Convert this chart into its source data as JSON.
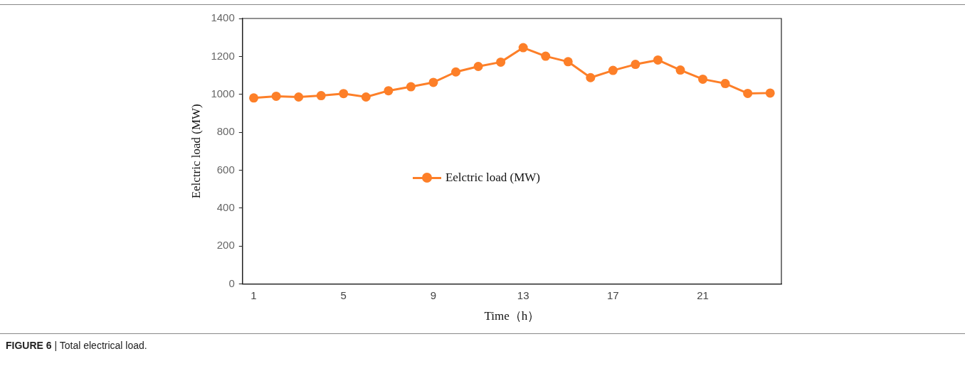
{
  "chart_data": {
    "type": "line",
    "xlabel": "Time（h）",
    "ylabel": "Eelctric load (MW)",
    "categories": [
      "1",
      null,
      null,
      null,
      "5",
      null,
      null,
      null,
      "9",
      null,
      null,
      null,
      "13",
      null,
      null,
      null,
      "17",
      null,
      null,
      null,
      "21",
      null,
      null,
      null
    ],
    "series": [
      {
        "name": "Eelctric load (MW)",
        "color": "#fd7f28",
        "values": [
          981,
          990,
          986,
          993,
          1004,
          986,
          1019,
          1040,
          1063,
          1118,
          1147,
          1170,
          1246,
          1201,
          1172,
          1088,
          1126,
          1158,
          1181,
          1128,
          1080,
          1057,
          1005,
          1007
        ]
      }
    ],
    "ylim": [
      0,
      1400
    ],
    "yticks": [
      0,
      200,
      400,
      600,
      800,
      1000,
      1200,
      1400
    ],
    "grid": false,
    "legend": "center",
    "marker": "circle",
    "line_style": "solid",
    "annotations": [
      "FIGURE 6 | Total electrical load."
    ]
  }
}
